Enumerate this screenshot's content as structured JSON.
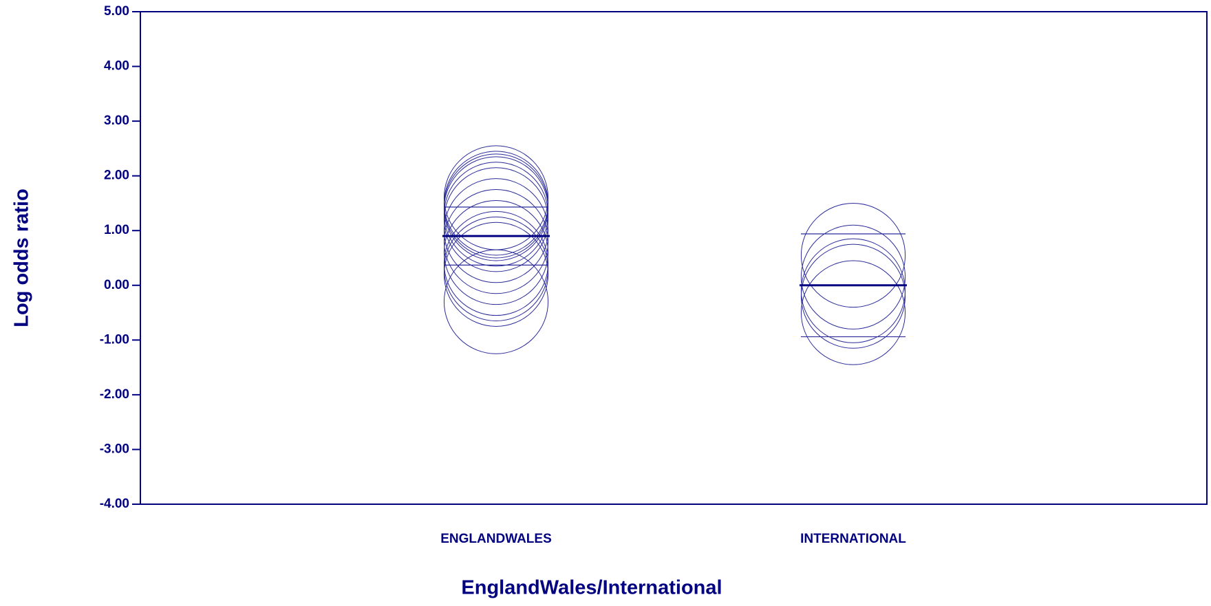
{
  "chart_data": {
    "type": "scatter",
    "x_label": "EnglandWales/International",
    "y_label": "Log odds ratio",
    "categories": [
      "ENGLANDWALES",
      "INTERNATIONAL"
    ],
    "points": [
      [
        1.6,
        1.5,
        1.45,
        1.4,
        1.3,
        1.2,
        1.0,
        0.8,
        0.6,
        0.4,
        0.3,
        0.2,
        -0.3
      ],
      [
        0.55,
        0.15,
        -0.1,
        -0.2,
        -0.5
      ]
    ],
    "means": [
      0.9,
      0.0
    ],
    "interval_lower": [
      0.37,
      -0.94
    ],
    "interval_upper": [
      1.43,
      0.94
    ],
    "color": "#000080",
    "ylim": [
      -4,
      5
    ],
    "yticks": [
      {
        "value": 5,
        "label": "5.00"
      },
      {
        "value": 4,
        "label": "4.00"
      },
      {
        "value": 3,
        "label": "3.00"
      },
      {
        "value": 2,
        "label": "2.00"
      },
      {
        "value": 1,
        "label": "1.00"
      },
      {
        "value": 0,
        "label": "0.00"
      },
      {
        "value": -1,
        "label": "-1.00"
      },
      {
        "value": -2,
        "label": "-2.00"
      },
      {
        "value": -3,
        "label": "-3.00"
      },
      {
        "value": -4,
        "label": "-4.00"
      }
    ]
  }
}
